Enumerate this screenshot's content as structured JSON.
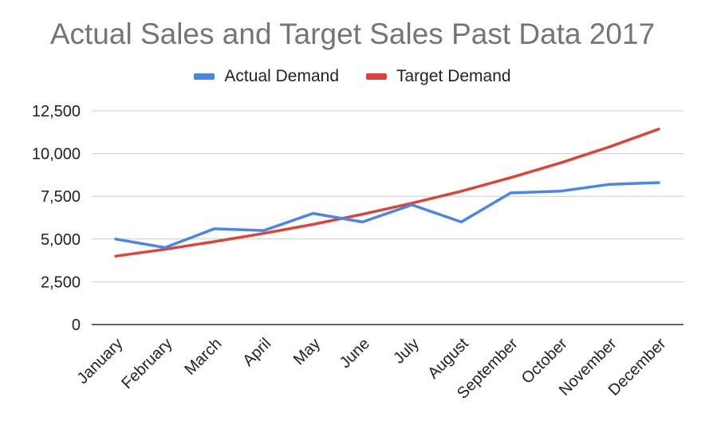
{
  "chart_data": {
    "type": "line",
    "title": "Actual Sales and Target Sales Past Data 2017",
    "xlabel": "",
    "ylabel": "",
    "categories": [
      "January",
      "February",
      "March",
      "April",
      "May",
      "June",
      "July",
      "August",
      "September",
      "October",
      "November",
      "December"
    ],
    "series": [
      {
        "name": "Actual Demand",
        "color": "#4a86e8",
        "values": [
          5000,
          4500,
          5600,
          5500,
          6500,
          6000,
          7000,
          6000,
          7700,
          7800,
          8200,
          8300
        ]
      },
      {
        "name": "Target Demand",
        "color": "#db4437",
        "values": [
          4000,
          4400,
          4850,
          5330,
          5860,
          6450,
          7100,
          7800,
          8590,
          9450,
          10390,
          11430
        ]
      }
    ],
    "ylim": [
      0,
      12500
    ],
    "yticks": [
      0,
      2500,
      5000,
      7500,
      10000,
      12500
    ],
    "ytick_labels": [
      "0",
      "2,500",
      "5,000",
      "7,500",
      "10,000",
      "12,500"
    ],
    "grid": true,
    "legend_position": "top-center"
  }
}
